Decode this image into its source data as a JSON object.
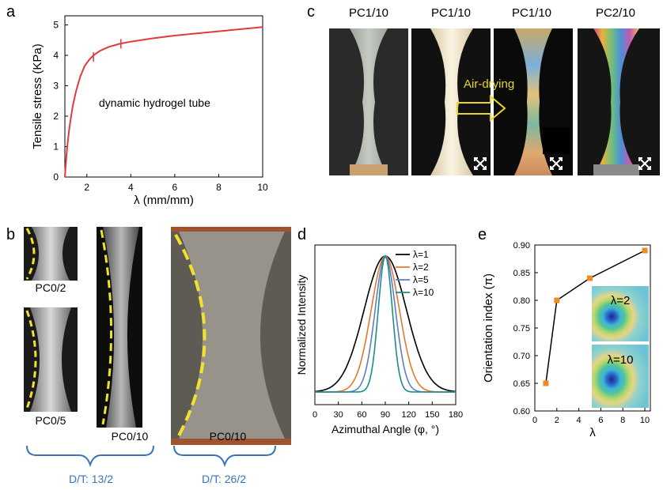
{
  "panels": {
    "a": {
      "letter": "a"
    },
    "b": {
      "letter": "b"
    },
    "c": {
      "letter": "c"
    },
    "d": {
      "letter": "d"
    },
    "e": {
      "letter": "e"
    }
  },
  "colors": {
    "curve_red": "#e03c3c",
    "marker_orange": "#f08a24",
    "bracket_blue": "#3b73b9",
    "dash_yellow": "#f2e22b",
    "arrow_yellow": "#e8d820"
  },
  "chart_data": [
    {
      "id": "a",
      "type": "line",
      "title": "",
      "xlabel": "λ (mm/mm)",
      "ylabel": "Tensile stress (KPa)",
      "xlim": [
        1,
        10
      ],
      "ylim": [
        0,
        5.3
      ],
      "xticks": [
        "2",
        "4",
        "6",
        "8",
        "10"
      ],
      "yticks": [
        "0",
        "1",
        "2",
        "3",
        "4",
        "5"
      ],
      "annotation": "dynamic hydrogel tube",
      "series": [
        {
          "x": [
            1.0,
            1.05,
            1.1,
            1.2,
            1.35,
            1.5,
            1.7,
            1.9,
            2.1,
            2.3,
            2.6,
            3.0,
            3.5,
            4.0,
            5.0,
            6.0,
            7.0,
            8.0,
            9.0,
            10.0
          ],
          "y": [
            0.0,
            0.5,
            0.95,
            1.6,
            2.3,
            2.8,
            3.3,
            3.65,
            3.85,
            4.0,
            4.15,
            4.28,
            4.38,
            4.45,
            4.56,
            4.65,
            4.72,
            4.79,
            4.86,
            4.93
          ]
        }
      ],
      "error_bars": [
        {
          "x": 2.3,
          "y": 3.95
        },
        {
          "x": 3.55,
          "y": 4.38
        }
      ]
    },
    {
      "id": "d",
      "type": "line",
      "title": "",
      "xlabel": "Azimuthal Angle (φ, °)",
      "ylabel": "Normalized Intensity",
      "xlim": [
        0,
        180
      ],
      "ylim": [
        0,
        1.05
      ],
      "xticks": [
        "0",
        "30",
        "60",
        "90",
        "120",
        "150",
        "180"
      ],
      "legend_position": "top-right",
      "series": [
        {
          "name": "λ=1",
          "color": "#000000",
          "center": 90,
          "sigma": 27
        },
        {
          "name": "λ=2",
          "color": "#e8772b",
          "center": 90,
          "sigma": 18
        },
        {
          "name": "λ=5",
          "color": "#5d7fc4",
          "center": 90,
          "sigma": 13
        },
        {
          "name": "λ=10",
          "color": "#1c8c8c",
          "center": 90,
          "sigma": 9
        }
      ]
    },
    {
      "id": "e",
      "type": "scatter",
      "title": "",
      "xlabel": "λ",
      "ylabel": "Orientation index (π)",
      "xlim": [
        0,
        10.5
      ],
      "ylim": [
        0.6,
        0.9
      ],
      "xticks": [
        "0",
        "2",
        "4",
        "6",
        "8",
        "10"
      ],
      "yticks": [
        "0.60",
        "0.65",
        "0.70",
        "0.75",
        "0.80",
        "0.85",
        "0.90"
      ],
      "series": [
        {
          "x": [
            1,
            2,
            5,
            10
          ],
          "y": [
            0.65,
            0.8,
            0.84,
            0.89
          ]
        }
      ],
      "insets": [
        "λ=2",
        "λ=10"
      ]
    }
  ],
  "panel_c": {
    "labels": [
      "PC1/10",
      "PC1/10",
      "PC1/10",
      "PC2/10"
    ],
    "arrow_text": "Air-drying"
  },
  "panel_b": {
    "labels": {
      "small": "PC0/2",
      "medium": "PC0/5",
      "tall": "PC0/10",
      "wide": "PC0/10"
    },
    "brackets": [
      "D/T: 13/2",
      "D/T: 26/2"
    ]
  }
}
